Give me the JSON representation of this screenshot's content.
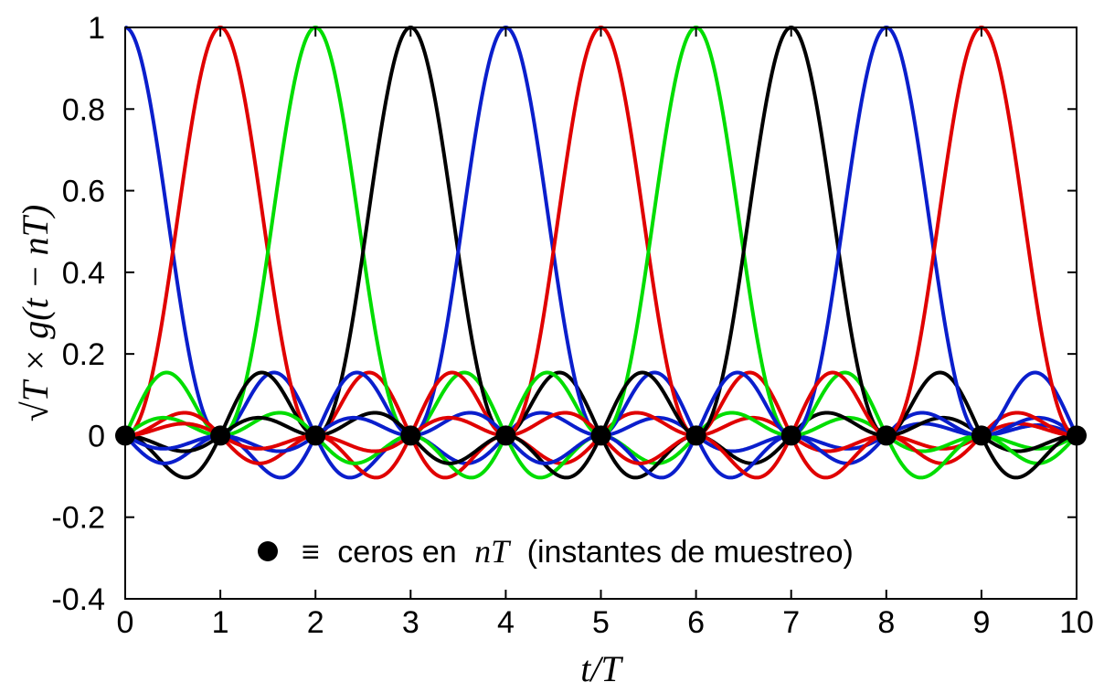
{
  "chart_data": {
    "type": "line",
    "title": "",
    "xlabel": "t/T",
    "ylabel": "√T × g(t − nT)",
    "xlim": [
      0,
      10
    ],
    "ylim": [
      -0.4,
      1
    ],
    "x_ticks": [
      "0",
      "1",
      "2",
      "3",
      "4",
      "5",
      "6",
      "7",
      "8",
      "9",
      "10"
    ],
    "y_ticks": [
      "-0.4",
      "-0.2",
      "0",
      "0.2",
      "0.4",
      "0.6",
      "0.8",
      "1"
    ],
    "grid": false,
    "legend": null,
    "pulse_peak_positions": [
      0,
      1,
      2,
      3,
      4,
      5,
      6,
      7,
      8,
      9
    ],
    "pulse_colors": [
      "#0a1ecc",
      "#e00000",
      "#00dd00",
      "#000000",
      "#0a1ecc",
      "#e00000",
      "#00dd00",
      "#000000",
      "#0a1ecc",
      "#e00000"
    ],
    "zero_markers_x": [
      0,
      1,
      2,
      3,
      4,
      5,
      6,
      7,
      8,
      9,
      10
    ],
    "zero_marker_y": 0,
    "annotation": {
      "symbol": "≡",
      "text_before": "ceros en",
      "math": "nT",
      "text_after": "(instantes de muestreo)"
    }
  }
}
